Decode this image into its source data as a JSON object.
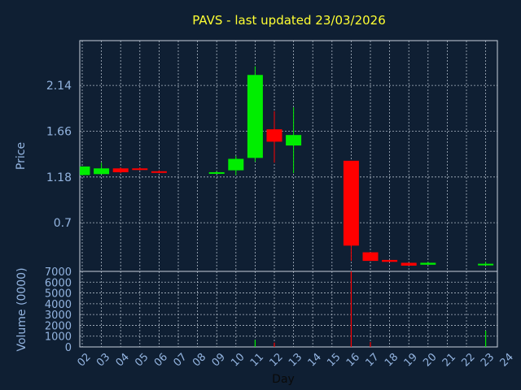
{
  "chart_data": {
    "type": "candlestick",
    "title": "PAVS - last updated 23/03/2026",
    "price_axis": {
      "label": "Price",
      "ticks": [
        "2.14",
        "1.66",
        "1.18",
        "0.7"
      ],
      "tick_values": [
        2.14,
        1.66,
        1.18,
        0.7
      ],
      "ylim": [
        0.19,
        2.61
      ]
    },
    "volume_axis": {
      "label": "Volume (0000)",
      "ticks": [
        "7000",
        "6000",
        "5000",
        "4000",
        "3000",
        "2000",
        "1000",
        "0"
      ],
      "tick_values": [
        7000,
        6000,
        5000,
        4000,
        3000,
        2000,
        1000,
        0
      ],
      "ylim": [
        0,
        7000
      ]
    },
    "x_axis": {
      "label": "Day",
      "ticks": [
        "02",
        "03",
        "04",
        "05",
        "06",
        "07",
        "08",
        "09",
        "10",
        "11",
        "12",
        "13",
        "14",
        "15",
        "16",
        "17",
        "18",
        "19",
        "20",
        "21",
        "22",
        "23",
        "24"
      ],
      "range": [
        2,
        24
      ]
    },
    "grid": true,
    "colors": {
      "up": "#00ee00",
      "down": "#ff0000",
      "title": "#ffff33",
      "axis_text": "#93b4e0"
    },
    "candles": [
      {
        "day": 2,
        "open": 1.2,
        "high": 1.29,
        "low": 1.2,
        "close": 1.29
      },
      {
        "day": 3,
        "open": 1.21,
        "high": 1.33,
        "low": 1.21,
        "close": 1.27
      },
      {
        "day": 4,
        "open": 1.27,
        "high": 1.28,
        "low": 1.22,
        "close": 1.23
      },
      {
        "day": 5,
        "open": 1.27,
        "high": 1.28,
        "low": 1.25,
        "close": 1.26
      },
      {
        "day": 6,
        "open": 1.24,
        "high": 1.25,
        "low": 1.22,
        "close": 1.23
      },
      {
        "day": 9,
        "open": 1.23,
        "high": 1.24,
        "low": 1.22,
        "close": 1.23
      },
      {
        "day": 10,
        "open": 1.25,
        "high": 1.4,
        "low": 1.2,
        "close": 1.37
      },
      {
        "day": 11,
        "open": 1.38,
        "high": 2.34,
        "low": 1.34,
        "close": 2.25
      },
      {
        "day": 12,
        "open": 1.68,
        "high": 1.87,
        "low": 1.33,
        "close": 1.55
      },
      {
        "day": 13,
        "open": 1.51,
        "high": 1.91,
        "low": 1.22,
        "close": 1.62
      },
      {
        "day": 16,
        "open": 1.35,
        "high": 1.35,
        "low": 0.3,
        "close": 0.46
      },
      {
        "day": 17,
        "open": 0.39,
        "high": 0.39,
        "low": 0.3,
        "close": 0.3
      },
      {
        "day": 18,
        "open": 0.31,
        "high": 0.31,
        "low": 0.29,
        "close": 0.29
      },
      {
        "day": 19,
        "open": 0.28,
        "high": 0.28,
        "low": 0.25,
        "close": 0.25
      },
      {
        "day": 20,
        "open": 0.26,
        "high": 0.29,
        "low": 0.26,
        "close": 0.28
      },
      {
        "day": 23,
        "open": 0.26,
        "high": 0.29,
        "low": 0.26,
        "close": 0.27
      }
    ],
    "volume": [
      {
        "day": 11,
        "value": 650,
        "dir": "up"
      },
      {
        "day": 12,
        "value": 400,
        "dir": "down"
      },
      {
        "day": 16,
        "value": 7000,
        "dir": "down"
      },
      {
        "day": 17,
        "value": 450,
        "dir": "down"
      },
      {
        "day": 23,
        "value": 1500,
        "dir": "up"
      }
    ]
  }
}
